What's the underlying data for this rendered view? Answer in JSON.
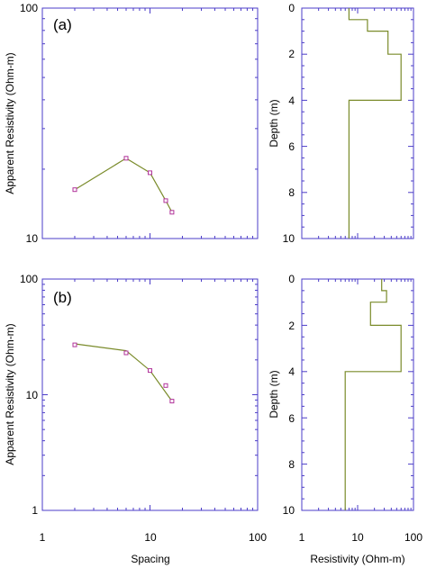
{
  "colors": {
    "axis": "#4b3cc8",
    "curve": "#7a8b2a",
    "marker": "#b1329a",
    "background": "#ffffff"
  },
  "chart_data": [
    {
      "id": "a-sounding",
      "type": "line",
      "panel_label": "(a)",
      "xlabel": "",
      "ylabel": "Apparent Resistivity (Ohm-m)",
      "xscale": "log",
      "yscale": "log",
      "xlim": [
        1,
        100
      ],
      "ylim": [
        10,
        100
      ],
      "yticks": [
        "10",
        "100"
      ],
      "x": [
        2,
        6,
        10,
        14,
        16
      ],
      "y": [
        16.3,
        22.3,
        19.3,
        14.6,
        13.0
      ],
      "curve": [
        [
          2,
          16.3
        ],
        [
          6,
          22.3
        ],
        [
          10,
          19.3
        ],
        [
          14,
          14.6
        ],
        [
          16,
          13.0
        ]
      ]
    },
    {
      "id": "a-model",
      "type": "line",
      "step": true,
      "xlabel": "",
      "ylabel": "Depth (m)",
      "xscale": "log",
      "xlim": [
        1,
        100
      ],
      "ylim": [
        0,
        10
      ],
      "y_inverted": true,
      "yticks": [
        "0",
        "2",
        "4",
        "6",
        "8",
        "10"
      ],
      "layers": [
        {
          "resistivity": 7,
          "top": 0,
          "bottom": 0.5
        },
        {
          "resistivity": 15,
          "top": 0.5,
          "bottom": 1.0
        },
        {
          "resistivity": 35,
          "top": 1.0,
          "bottom": 2.0
        },
        {
          "resistivity": 60,
          "top": 2.0,
          "bottom": 4.0
        },
        {
          "resistivity": 7,
          "top": 4.0,
          "bottom": 10
        }
      ]
    },
    {
      "id": "b-sounding",
      "type": "line",
      "panel_label": "(b)",
      "xlabel": "Spacing",
      "ylabel": "Apparent Resistivity (Ohm-m)",
      "xscale": "log",
      "yscale": "log",
      "xlim": [
        1,
        100
      ],
      "ylim": [
        1,
        100
      ],
      "xticks": [
        "1",
        "10",
        "100"
      ],
      "yticks": [
        "1",
        "10",
        "100"
      ],
      "x": [
        2,
        6,
        10,
        14,
        16
      ],
      "y": [
        27,
        23,
        16.2,
        12.0,
        8.8
      ],
      "curve": [
        [
          2,
          27.5
        ],
        [
          6,
          24
        ],
        [
          10,
          16.2
        ],
        [
          16,
          8.8
        ]
      ]
    },
    {
      "id": "b-model",
      "type": "line",
      "step": true,
      "xlabel": "Resistivity (Ohm-m)",
      "ylabel": "Depth (m)",
      "xscale": "log",
      "xlim": [
        1,
        100
      ],
      "ylim": [
        0,
        10
      ],
      "y_inverted": true,
      "xticks": [
        "1",
        "10",
        "100"
      ],
      "yticks": [
        "0",
        "2",
        "4",
        "6",
        "8",
        "10"
      ],
      "layers": [
        {
          "resistivity": 27,
          "top": 0,
          "bottom": 0.5
        },
        {
          "resistivity": 33,
          "top": 0.5,
          "bottom": 1.0
        },
        {
          "resistivity": 17,
          "top": 1.0,
          "bottom": 2.0
        },
        {
          "resistivity": 60,
          "top": 2.0,
          "bottom": 4.0
        },
        {
          "resistivity": 6,
          "top": 4.0,
          "bottom": 10
        }
      ]
    }
  ]
}
